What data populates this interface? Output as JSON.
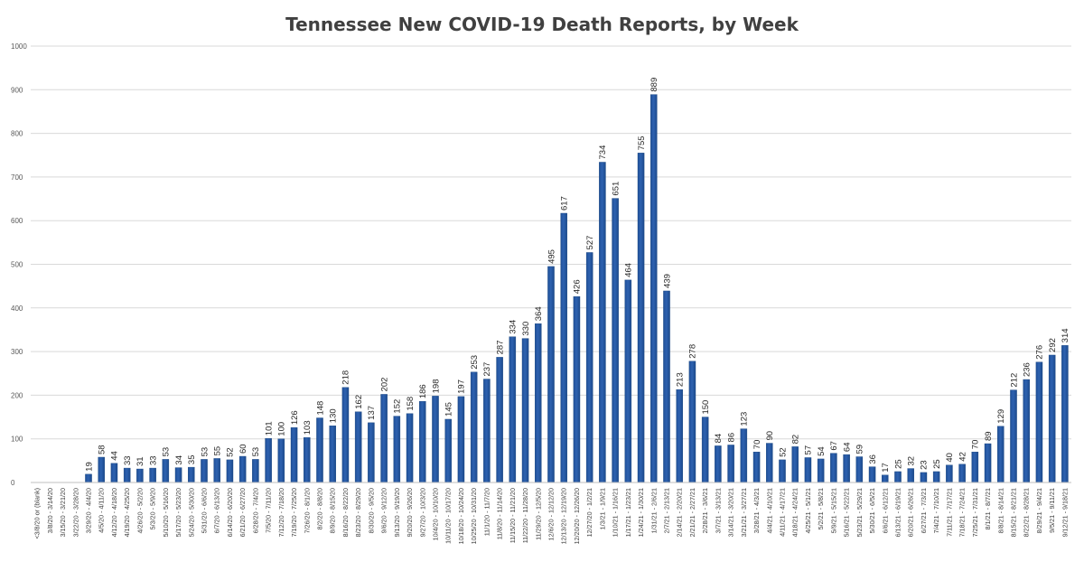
{
  "chart_data": {
    "type": "bar",
    "title": "Tennessee New COVID-19 Death Reports, by Week",
    "xlabel": "",
    "ylabel": "",
    "ylim": [
      0,
      1000
    ],
    "yticks": [
      0,
      100,
      200,
      300,
      400,
      500,
      600,
      700,
      800,
      900,
      1000
    ],
    "grid": true,
    "legend": "none",
    "bar_color": "#2e62b0",
    "categories": [
      "<3/8/20 or (blank)",
      "3/8/20 - 3/14/20",
      "3/15/20 - 3/21/20",
      "3/22/20 - 3/28/20",
      "3/29/20 - 4/4/20",
      "4/5/20 - 4/11/20",
      "4/12/20 - 4/18/20",
      "4/19/20 - 4/25/20",
      "4/26/20 - 5/2/20",
      "5/3/20 - 5/9/20",
      "5/10/20 - 5/16/20",
      "5/17/20 - 5/23/20",
      "5/24/20 - 5/30/20",
      "5/31/20 - 6/6/20",
      "6/7/20 - 6/13/20",
      "6/14/20 - 6/20/20",
      "6/21/20 - 6/27/20",
      "6/28/20 - 7/4/20",
      "7/5/20 - 7/11/20",
      "7/12/20 - 7/18/20",
      "7/19/20 - 7/25/20",
      "7/26/20 - 8/1/20",
      "8/2/20 - 8/8/20",
      "8/9/20 - 8/15/20",
      "8/16/20 - 8/22/20",
      "8/23/20 - 8/29/20",
      "8/30/20 - 9/5/20",
      "9/6/20 - 9/12/20",
      "9/13/20 - 9/19/20",
      "9/20/20 - 9/26/20",
      "9/27/20 - 10/3/20",
      "10/4/20 - 10/10/20",
      "10/11/20 - 10/17/20",
      "10/18/20 - 10/24/20",
      "10/25/20 - 10/31/20",
      "11/1/20 - 11/7/20",
      "11/8/20 - 11/14/20",
      "11/15/20 - 11/21/20",
      "11/22/20 - 11/28/20",
      "11/29/20 - 12/5/20",
      "12/6/20 - 12/12/20",
      "12/13/20 - 12/19/20",
      "12/20/20 - 12/26/20",
      "12/27/20 - 1/2/21",
      "1/3/21 - 1/9/21",
      "1/10/21 - 1/16/21",
      "1/17/21 - 1/23/21",
      "1/24/21 - 1/30/21",
      "1/31/21 - 2/6/21",
      "2/7/21 - 2/13/21",
      "2/14/21 - 2/20/21",
      "2/21/21 - 2/27/21",
      "2/28/21 - 3/6/21",
      "3/7/21 - 3/13/21",
      "3/14/21 - 3/20/21",
      "3/21/21 - 3/27/21",
      "3/28/21 - 4/3/21",
      "4/4/21 - 4/10/21",
      "4/11/21 - 4/17/21",
      "4/18/21 - 4/24/21",
      "4/25/21 - 5/1/21",
      "5/2/21 - 5/8/21",
      "5/9/21 - 5/15/21",
      "5/16/21 - 5/22/21",
      "5/23/21 - 5/29/21",
      "5/30/21 - 6/5/21",
      "6/6/21 - 6/12/21",
      "6/13/21 - 6/19/21",
      "6/20/21 - 6/26/21",
      "6/27/21 - 7/3/21",
      "7/4/21 - 7/10/21",
      "7/11/21 - 7/17/21",
      "7/18/21 - 7/24/21",
      "7/25/21 - 7/31/21",
      "8/1/21 - 8/7/21",
      "8/8/21 - 8/14/21",
      "8/15/21 - 8/21/21",
      "8/22/21 - 8/28/21",
      "8/29/21 - 9/4/21",
      "9/5/21 - 9/11/21",
      "9/12/21 - 9/18/21"
    ],
    "values": [
      null,
      null,
      null,
      null,
      19,
      58,
      44,
      33,
      31,
      33,
      53,
      34,
      35,
      53,
      55,
      52,
      60,
      53,
      101,
      100,
      126,
      103,
      148,
      130,
      218,
      162,
      137,
      202,
      152,
      158,
      186,
      198,
      145,
      197,
      253,
      237,
      287,
      334,
      330,
      364,
      495,
      617,
      426,
      527,
      734,
      651,
      464,
      755,
      889,
      439,
      213,
      278,
      150,
      84,
      86,
      123,
      70,
      90,
      52,
      82,
      57,
      54,
      67,
      64,
      59,
      36,
      17,
      25,
      32,
      23,
      25,
      40,
      42,
      70,
      89,
      129,
      212,
      236,
      276,
      292,
      314
    ]
  }
}
